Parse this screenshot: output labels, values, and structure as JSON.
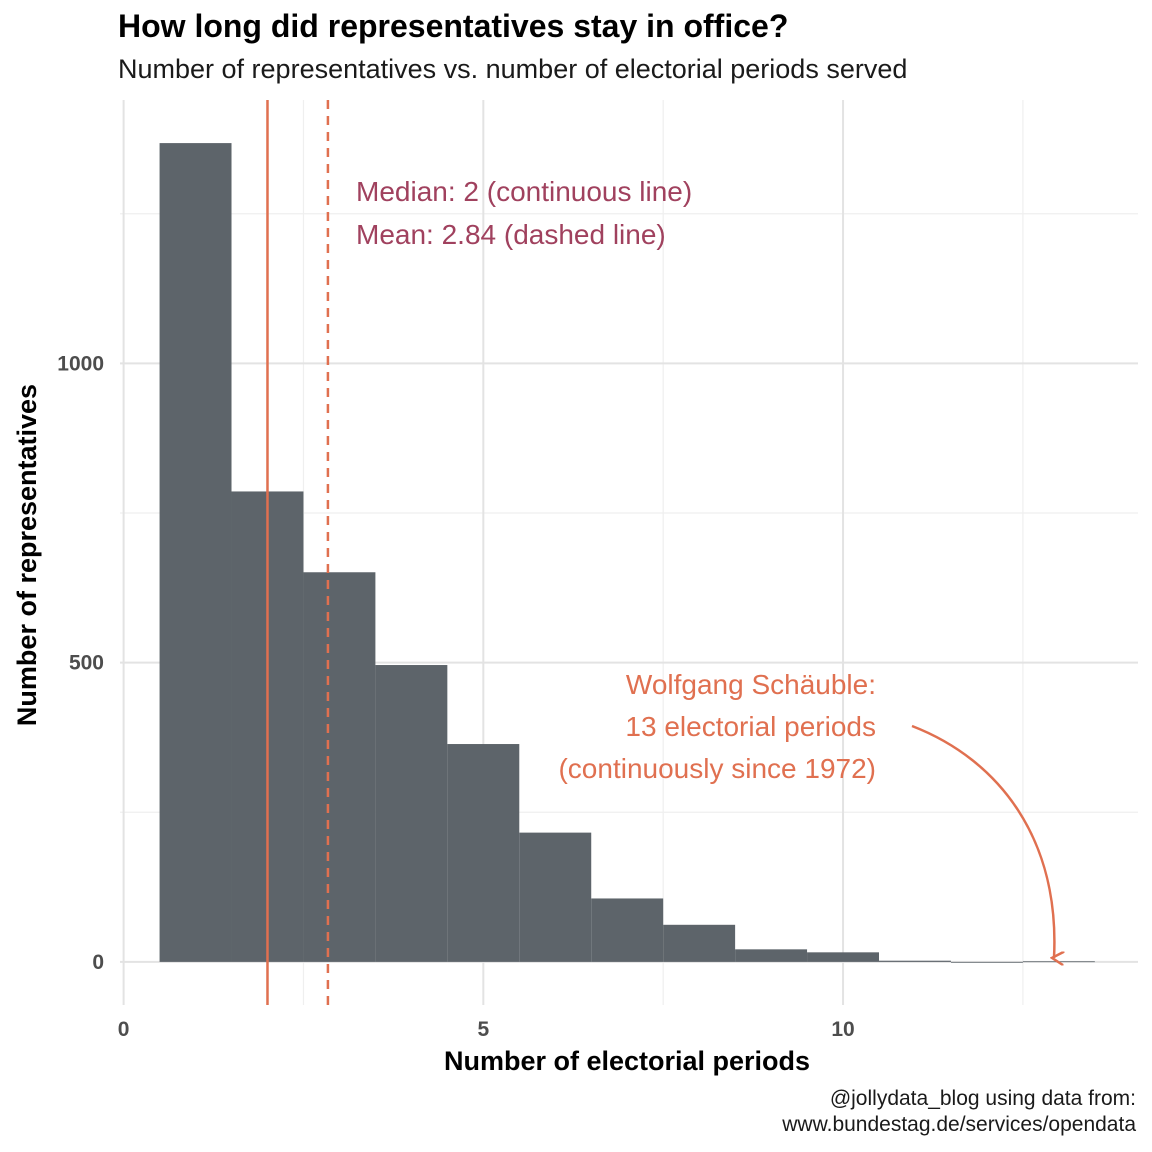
{
  "title": "How long did representatives stay in office?",
  "subtitle": "Number of representatives vs. number of electorial periods served",
  "caption": {
    "line1": "@jollydata_blog using data from:",
    "line2": "www.bundestag.de/services/opendata"
  },
  "colors": {
    "bar": "#5d646a",
    "median_line": "#e07050",
    "mean_line": "#e07050",
    "stats_text": "#a0415e",
    "annotation": "#e07050"
  },
  "stats_note": {
    "line1": "Median: 2 (continuous line)",
    "line2": "Mean: 2.84 (dashed line)"
  },
  "annotation": {
    "line1": "Wolfgang Schäuble:",
    "line2": "13 electorial periods",
    "line3": "(continuously since 1972)"
  },
  "chart_data": {
    "type": "bar",
    "title": "How long did representatives stay in office?",
    "subtitle": "Number of representatives vs. number of electorial periods served",
    "xlabel": "Number of electorial periods",
    "ylabel": "Number of representatives",
    "x": [
      1,
      2,
      3,
      4,
      5,
      6,
      7,
      8,
      9,
      10,
      11,
      12,
      13
    ],
    "values": [
      1368,
      786,
      651,
      496,
      364,
      216,
      106,
      62,
      21,
      16,
      2,
      0,
      1
    ],
    "xlim": [
      -0.05,
      14.1
    ],
    "ylim": [
      -72,
      1440
    ],
    "x_ticks": [
      0,
      5,
      10
    ],
    "x_tick_labels": [
      "0",
      "5",
      "10"
    ],
    "y_ticks": [
      0,
      500,
      1000
    ],
    "y_tick_labels": [
      "0",
      "500",
      "1000"
    ],
    "median": 2,
    "mean": 2.84,
    "grid": true
  }
}
